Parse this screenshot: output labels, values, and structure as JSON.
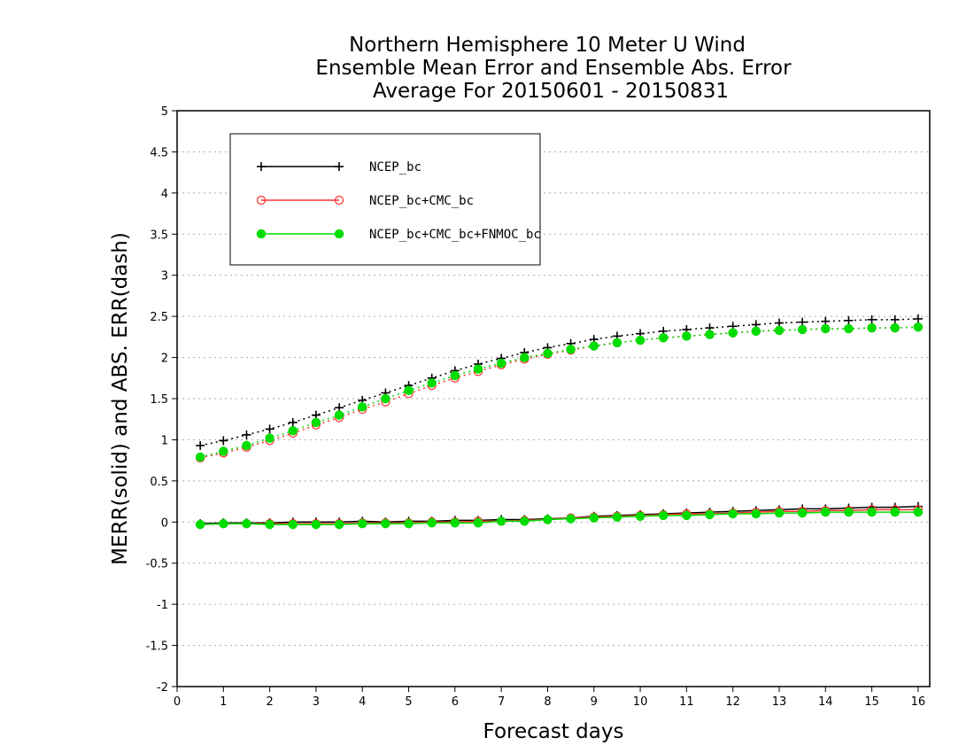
{
  "chart_data": {
    "type": "line",
    "title_lines": [
      "Northern Hemisphere 10 Meter U Wind",
      "Ensemble Mean Error and Ensemble Abs. Error",
      "Average For 20150601 - 20150831"
    ],
    "xlabel": "Forecast days",
    "ylabel": "MERR(solid) and ABS. ERR(dash)",
    "xlim": [
      0,
      16.25
    ],
    "ylim": [
      -2,
      5
    ],
    "x_ticks": [
      0,
      1,
      2,
      3,
      4,
      5,
      6,
      7,
      8,
      9,
      10,
      11,
      12,
      13,
      14,
      15,
      16
    ],
    "y_ticks": [
      -2,
      -1.5,
      -1,
      -0.5,
      0,
      0.5,
      1,
      1.5,
      2,
      2.5,
      3,
      3.5,
      4,
      4.5,
      5
    ],
    "grid": "horizontal dotted",
    "legend_position": "top-left",
    "x": [
      0.5,
      1.0,
      1.5,
      2.0,
      2.5,
      3.0,
      3.5,
      4.0,
      4.5,
      5.0,
      5.5,
      6.0,
      6.5,
      7.0,
      7.5,
      8.0,
      8.5,
      9.0,
      9.5,
      10.0,
      10.5,
      11.0,
      11.5,
      12.0,
      12.5,
      13.0,
      13.5,
      14.0,
      14.5,
      15.0,
      15.5,
      16.0
    ],
    "series": [
      {
        "name": "NCEP_bc",
        "color": "#000000",
        "marker": "plus",
        "merr": [
          -0.02,
          -0.01,
          -0.01,
          -0.01,
          0.0,
          0.0,
          0.0,
          0.01,
          0.0,
          0.01,
          0.01,
          0.02,
          0.02,
          0.03,
          0.03,
          0.04,
          0.05,
          0.07,
          0.08,
          0.09,
          0.1,
          0.11,
          0.12,
          0.13,
          0.14,
          0.15,
          0.16,
          0.16,
          0.17,
          0.18,
          0.18,
          0.19
        ],
        "abs_err": [
          0.93,
          0.99,
          1.06,
          1.13,
          1.21,
          1.3,
          1.39,
          1.48,
          1.57,
          1.66,
          1.75,
          1.84,
          1.92,
          1.99,
          2.06,
          2.12,
          2.17,
          2.22,
          2.26,
          2.29,
          2.32,
          2.34,
          2.36,
          2.38,
          2.4,
          2.42,
          2.43,
          2.44,
          2.45,
          2.46,
          2.46,
          2.47
        ]
      },
      {
        "name": "NCEP_bc+CMC_bc",
        "color": "#ff3030",
        "marker": "open-circle",
        "merr": [
          -0.03,
          -0.02,
          -0.02,
          -0.02,
          -0.02,
          -0.02,
          -0.02,
          -0.01,
          -0.01,
          -0.01,
          0.0,
          0.0,
          0.01,
          0.01,
          0.02,
          0.03,
          0.05,
          0.06,
          0.07,
          0.08,
          0.09,
          0.1,
          0.1,
          0.11,
          0.12,
          0.13,
          0.13,
          0.14,
          0.14,
          0.15,
          0.15,
          0.15
        ],
        "abs_err": [
          0.78,
          0.84,
          0.91,
          0.99,
          1.08,
          1.18,
          1.27,
          1.37,
          1.46,
          1.56,
          1.66,
          1.75,
          1.83,
          1.91,
          1.98,
          2.04,
          2.09,
          2.14,
          2.18,
          2.21,
          2.24,
          2.26,
          2.28,
          2.3,
          2.32,
          2.33,
          2.34,
          2.35,
          2.35,
          2.36,
          2.36,
          2.37
        ]
      },
      {
        "name": "NCEP_bc+CMC_bc+FNMOC_bc",
        "color": "#00dd00",
        "marker": "filled-circle",
        "merr": [
          -0.03,
          -0.02,
          -0.02,
          -0.03,
          -0.03,
          -0.03,
          -0.03,
          -0.02,
          -0.02,
          -0.02,
          -0.01,
          -0.01,
          -0.01,
          0.01,
          0.01,
          0.03,
          0.04,
          0.05,
          0.06,
          0.07,
          0.08,
          0.08,
          0.09,
          0.1,
          0.1,
          0.11,
          0.11,
          0.12,
          0.12,
          0.12,
          0.12,
          0.12
        ],
        "abs_err": [
          0.79,
          0.86,
          0.93,
          1.02,
          1.11,
          1.21,
          1.3,
          1.4,
          1.5,
          1.6,
          1.69,
          1.78,
          1.86,
          1.93,
          2.0,
          2.05,
          2.1,
          2.14,
          2.18,
          2.21,
          2.24,
          2.26,
          2.28,
          2.3,
          2.32,
          2.33,
          2.34,
          2.35,
          2.35,
          2.36,
          2.36,
          2.37
        ]
      }
    ]
  }
}
